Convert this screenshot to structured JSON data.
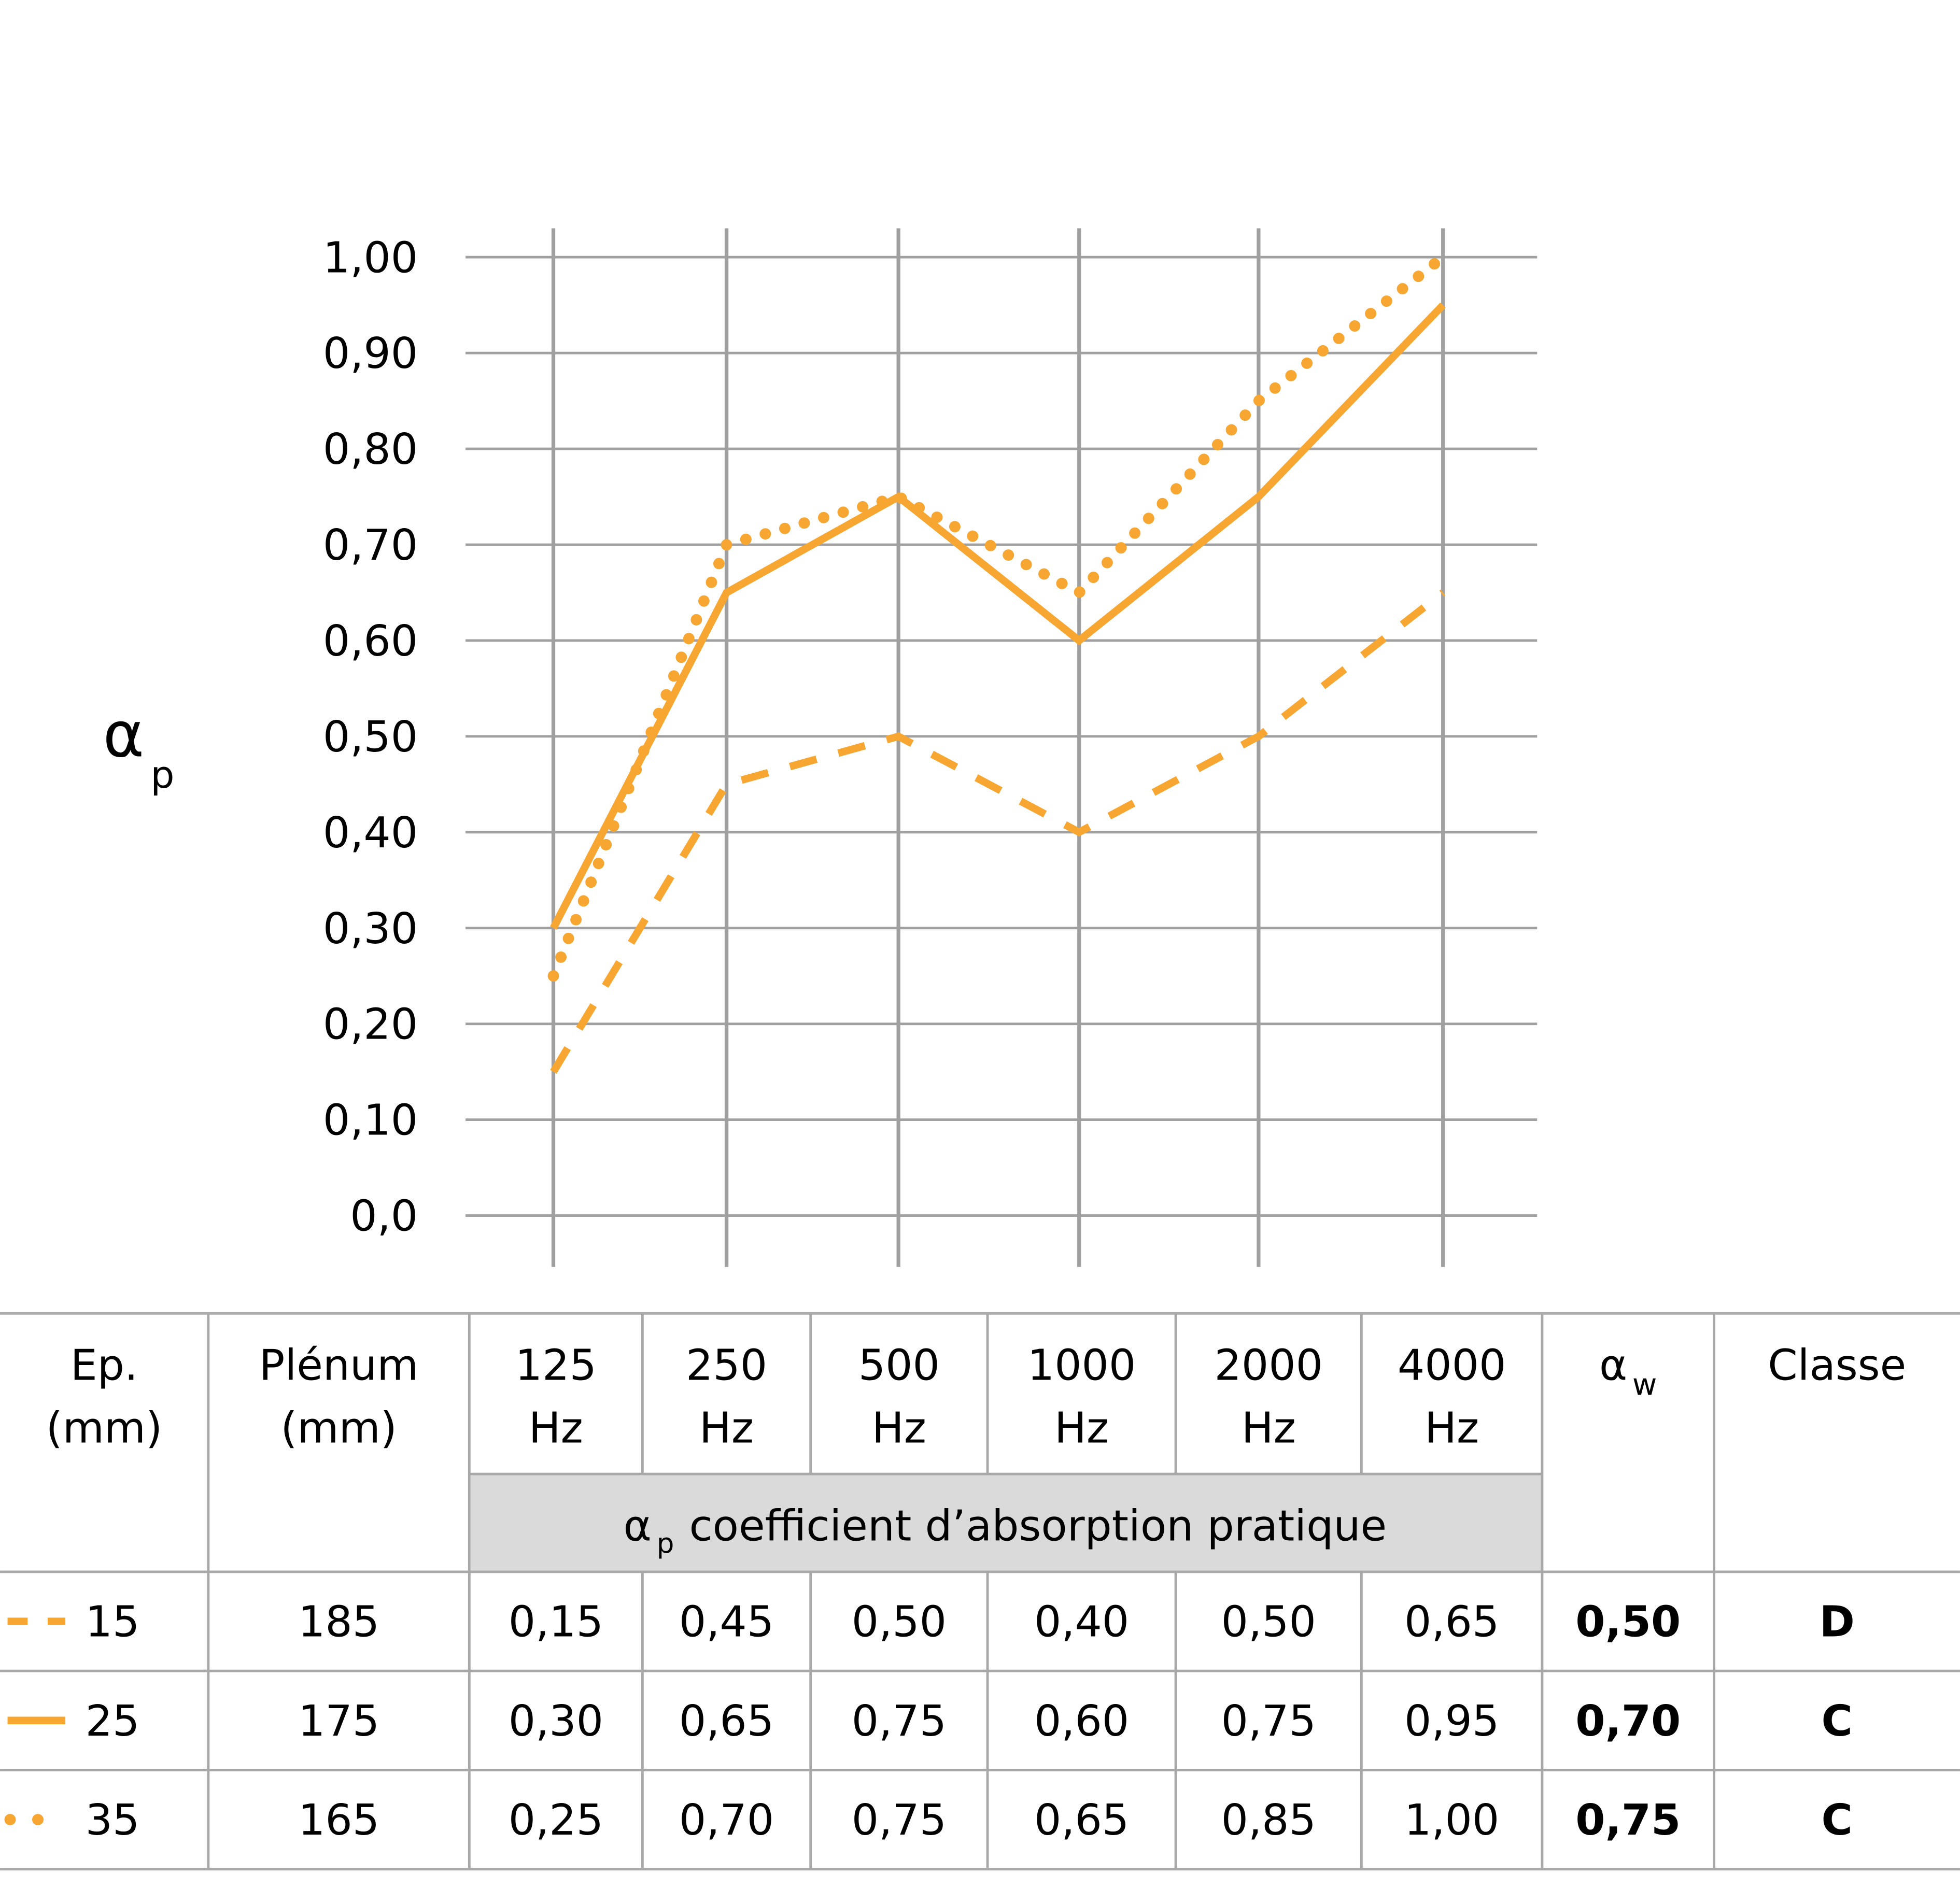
{
  "chart_data": {
    "type": "line",
    "ylabel": {
      "symbol": "α",
      "sub": "p"
    },
    "categories": [
      "125",
      "250",
      "500",
      "1000",
      "2000",
      "4000"
    ],
    "ylim": [
      0,
      1
    ],
    "y_ticks": [
      "0,0",
      "0,10",
      "0,20",
      "0,30",
      "0,40",
      "0,50",
      "0,60",
      "0,70",
      "0,80",
      "0,90",
      "1,00"
    ],
    "grid": true,
    "color": "#F6A631",
    "series": [
      {
        "name": "15",
        "style": "dashed",
        "values": [
          0.15,
          0.45,
          0.5,
          0.4,
          0.5,
          0.65
        ]
      },
      {
        "name": "25",
        "style": "solid",
        "values": [
          0.3,
          0.65,
          0.75,
          0.6,
          0.75,
          0.95
        ]
      },
      {
        "name": "35",
        "style": "dotted",
        "values": [
          0.25,
          0.7,
          0.75,
          0.65,
          0.85,
          1.0
        ]
      }
    ]
  },
  "table": {
    "headers": {
      "ep": [
        "Ep.",
        "(mm)"
      ],
      "plenum": [
        "Plénum",
        "(mm)"
      ],
      "freqs": [
        [
          "125",
          "Hz"
        ],
        [
          "250",
          "Hz"
        ],
        [
          "500",
          "Hz"
        ],
        [
          "1000",
          "Hz"
        ],
        [
          "2000",
          "Hz"
        ],
        [
          "4000",
          "Hz"
        ]
      ],
      "aw": {
        "symbol": "α",
        "sub": "w"
      },
      "classe": "Classe",
      "band": {
        "symbol": "α",
        "sub": "p",
        "text": " coefficient d’absorption pratique"
      }
    },
    "rows": [
      {
        "ep": "15",
        "plenum": "185",
        "values": [
          "0,15",
          "0,45",
          "0,50",
          "0,40",
          "0,50",
          "0,65"
        ],
        "aw": "0,50",
        "classe": "D",
        "line_style": "dashed"
      },
      {
        "ep": "25",
        "plenum": "175",
        "values": [
          "0,30",
          "0,65",
          "0,75",
          "0,60",
          "0,75",
          "0,95"
        ],
        "aw": "0,70",
        "classe": "C",
        "line_style": "solid"
      },
      {
        "ep": "35",
        "plenum": "165",
        "values": [
          "0,25",
          "0,70",
          "0,75",
          "0,65",
          "0,85",
          "1,00"
        ],
        "aw": "0,75",
        "classe": "C",
        "line_style": "dotted"
      }
    ]
  }
}
